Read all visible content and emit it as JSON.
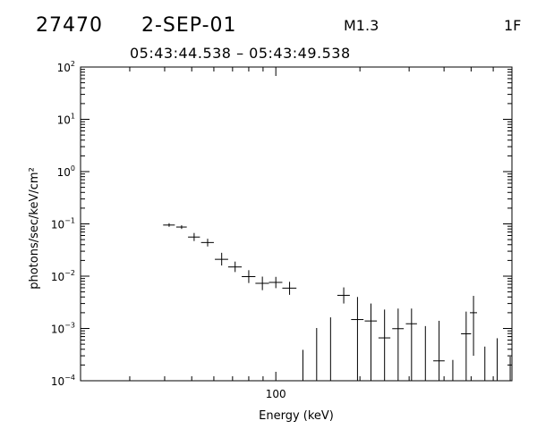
{
  "header": {
    "event_id": "27470",
    "date": "2-SEP-01",
    "goes_class": "M1.3",
    "flag": "1F",
    "time_range": "05:43:44.538 – 05:43:49.538"
  },
  "chart_data": {
    "type": "scatter",
    "xlabel": "Energy (keV)",
    "ylabel": "photons/sec/keV/cm²",
    "xscale": "log",
    "yscale": "log",
    "xlim": [
      20,
      700
    ],
    "ylim": [
      0.0001,
      100
    ],
    "x_tick_labels": [
      {
        "value": 100,
        "label": "100"
      }
    ],
    "y_tick_labels": [
      {
        "value": 100,
        "base": "10",
        "exp": "2"
      },
      {
        "value": 10,
        "base": "10",
        "exp": "1"
      },
      {
        "value": 1,
        "base": "10",
        "exp": "0"
      },
      {
        "value": 0.1,
        "base": "10",
        "exp": "−1"
      },
      {
        "value": 0.01,
        "base": "10",
        "exp": "−2"
      },
      {
        "value": 0.001,
        "base": "10",
        "exp": "−3"
      },
      {
        "value": 0.0001,
        "base": "10",
        "exp": "−4"
      }
    ],
    "points": [
      {
        "x": 41.5,
        "y": 0.095,
        "ylo": 0.088,
        "yhi": 0.103,
        "xlo": 39.5,
        "xhi": 43.5
      },
      {
        "x": 46,
        "y": 0.087,
        "ylo": 0.08,
        "yhi": 0.094,
        "xlo": 44,
        "xhi": 48
      },
      {
        "x": 51,
        "y": 0.056,
        "ylo": 0.047,
        "yhi": 0.067,
        "xlo": 48.5,
        "xhi": 53.5
      },
      {
        "x": 57,
        "y": 0.044,
        "ylo": 0.037,
        "yhi": 0.052,
        "xlo": 54,
        "xhi": 60
      },
      {
        "x": 64,
        "y": 0.021,
        "ylo": 0.016,
        "yhi": 0.028,
        "xlo": 60.5,
        "xhi": 67.5
      },
      {
        "x": 71.5,
        "y": 0.015,
        "ylo": 0.012,
        "yhi": 0.019,
        "xlo": 67.5,
        "xhi": 75.5
      },
      {
        "x": 80,
        "y": 0.0098,
        "ylo": 0.0074,
        "yhi": 0.013,
        "xlo": 75.5,
        "xhi": 84.5
      },
      {
        "x": 89.5,
        "y": 0.0073,
        "ylo": 0.0054,
        "yhi": 0.0098,
        "xlo": 84.5,
        "xhi": 94.5
      },
      {
        "x": 100,
        "y": 0.0076,
        "ylo": 0.0059,
        "yhi": 0.0097,
        "xlo": 94.5,
        "xhi": 105.5
      },
      {
        "x": 112,
        "y": 0.0059,
        "ylo": 0.0044,
        "yhi": 0.0078,
        "xlo": 105.5,
        "xhi": 118.5
      },
      {
        "x": 125,
        "y": null,
        "ylo": 0.0001,
        "yhi": 0.00039,
        "xlo": 125,
        "xhi": 125
      },
      {
        "x": 140,
        "y": null,
        "ylo": 0.0001,
        "yhi": 0.00102,
        "xlo": 140,
        "xhi": 140
      },
      {
        "x": 157,
        "y": null,
        "ylo": 0.0001,
        "yhi": 0.00163,
        "xlo": 157,
        "xhi": 157
      },
      {
        "x": 175,
        "y": 0.0043,
        "ylo": 0.003,
        "yhi": 0.0061,
        "xlo": 166,
        "xhi": 184
      },
      {
        "x": 196,
        "y": 0.00148,
        "ylo": 0.0001,
        "yhi": 0.004,
        "xlo": 186,
        "xhi": 206
      },
      {
        "x": 219,
        "y": 0.00139,
        "ylo": 0.0001,
        "yhi": 0.003,
        "xlo": 208,
        "xhi": 230
      },
      {
        "x": 245,
        "y": 0.00066,
        "ylo": 0.0001,
        "yhi": 0.0023,
        "xlo": 233,
        "xhi": 257
      },
      {
        "x": 274,
        "y": 0.00099,
        "ylo": 0.0001,
        "yhi": 0.0024,
        "xlo": 261,
        "xhi": 287
      },
      {
        "x": 306,
        "y": 0.00123,
        "ylo": 0.0001,
        "yhi": 0.0024,
        "xlo": 292,
        "xhi": 320
      },
      {
        "x": 343,
        "y": null,
        "ylo": 0.0001,
        "yhi": 0.00111,
        "xlo": 343,
        "xhi": 343
      },
      {
        "x": 384,
        "y": 0.00024,
        "ylo": 0.0001,
        "yhi": 0.0014,
        "xlo": 366,
        "xhi": 402
      },
      {
        "x": 430,
        "y": null,
        "ylo": 0.0001,
        "yhi": 0.00025,
        "xlo": 430,
        "xhi": 430
      },
      {
        "x": 480,
        "y": 0.00079,
        "ylo": 0.0001,
        "yhi": 0.0021,
        "xlo": 460,
        "xhi": 500
      },
      {
        "x": 510,
        "y": 0.002,
        "ylo": 0.0003,
        "yhi": 0.0042,
        "xlo": 495,
        "xhi": 525
      },
      {
        "x": 560,
        "y": null,
        "ylo": 0.0001,
        "yhi": 0.00045,
        "xlo": 560,
        "xhi": 560
      },
      {
        "x": 620,
        "y": null,
        "ylo": 0.0001,
        "yhi": 0.00065,
        "xlo": 620,
        "xhi": 620
      },
      {
        "x": 690,
        "y": null,
        "ylo": 0.0001,
        "yhi": 0.00029,
        "xlo": 690,
        "xhi": 690
      }
    ]
  }
}
